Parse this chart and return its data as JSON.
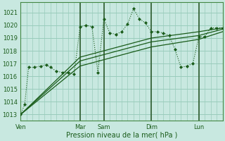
{
  "xlabel": "Pression niveau de la mer( hPa )",
  "background_color": "#c8e8e0",
  "grid_color": "#99ccbb",
  "line_color": "#1a5c1a",
  "dark_line_color": "#336633",
  "ylim": [
    1012.5,
    1021.8
  ],
  "yticks": [
    1013,
    1014,
    1015,
    1016,
    1017,
    1018,
    1019,
    1020,
    1021
  ],
  "day_labels": [
    "Ven",
    "Mar",
    "Sam",
    "Dim",
    "Lun"
  ],
  "day_positions": [
    0,
    60,
    84,
    132,
    180
  ],
  "total_hours": 204,
  "series1_x": [
    0,
    4,
    8,
    14,
    20,
    26,
    30,
    36,
    42,
    48,
    54,
    60,
    66,
    72,
    78,
    84,
    90,
    96,
    102,
    108,
    114,
    120,
    126,
    132,
    138,
    144,
    150,
    156,
    162,
    168,
    174,
    180,
    186,
    192,
    198,
    204
  ],
  "series1_y": [
    1013.0,
    1013.8,
    1016.7,
    1016.7,
    1016.8,
    1016.9,
    1016.7,
    1016.4,
    1016.3,
    1016.3,
    1016.2,
    1019.9,
    1020.0,
    1019.9,
    1016.3,
    1020.5,
    1019.4,
    1019.3,
    1019.5,
    1020.1,
    1021.3,
    1020.5,
    1020.2,
    1019.5,
    1019.5,
    1019.4,
    1019.2,
    1018.1,
    1016.7,
    1016.8,
    1017.0,
    1019.1,
    1019.1,
    1019.8,
    1019.8,
    1019.8
  ],
  "series2_x": [
    0,
    60,
    84,
    132,
    180,
    204
  ],
  "series2_y": [
    1013.0,
    1017.5,
    1018.0,
    1019.0,
    1019.5,
    1019.8
  ],
  "series3_x": [
    0,
    60,
    84,
    132,
    180,
    204
  ],
  "series3_y": [
    1013.0,
    1017.2,
    1017.7,
    1018.7,
    1019.2,
    1019.7
  ],
  "series4_x": [
    0,
    60,
    84,
    132,
    180,
    204
  ],
  "series4_y": [
    1013.0,
    1016.8,
    1017.3,
    1018.3,
    1018.9,
    1019.5
  ]
}
